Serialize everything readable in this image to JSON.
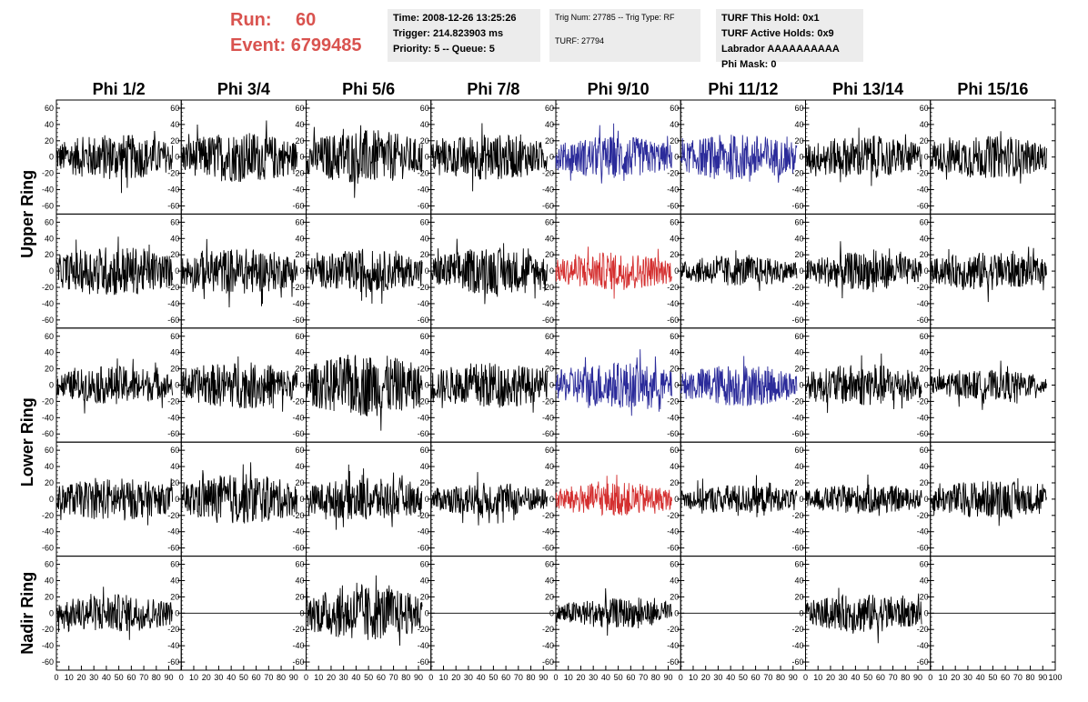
{
  "header": {
    "run_label": "Run:",
    "run_value": "60",
    "event_label": "Event:",
    "event_value": "6799485",
    "time": "Time: 2008-12-26 13:25:26",
    "trigger": "Trigger: 214.823903 ms",
    "priority": "Priority: 5 -- Queue: 5",
    "trig_num": "Trig Num: 27785 -- Trig Type: RF",
    "turf": "TURF: 27794",
    "turf_hold": "TURF This Hold: 0x1",
    "turf_active": "TURF Active Holds: 0x9",
    "labrador": "Labrador AAAAAAAAAA",
    "phi_mask": "Phi Mask: 0"
  },
  "colors": {
    "accent": "#d9534f",
    "black": "#000000",
    "blue": "#2b2b9a",
    "red": "#d43030"
  },
  "chart_data": {
    "type": "line",
    "columns": [
      "Phi 1/2",
      "Phi 3/4",
      "Phi 5/6",
      "Phi 7/8",
      "Phi 9/10",
      "Phi 11/12",
      "Phi 13/14",
      "Phi 15/16"
    ],
    "ring_labels": [
      "Upper Ring",
      "Lower Ring",
      "Nadir Ring"
    ],
    "y_ticks": [
      "60",
      "40",
      "20",
      "0",
      "-20",
      "-40",
      "-60"
    ],
    "x_ticks": [
      "0",
      "10",
      "20",
      "30",
      "40",
      "50",
      "60",
      "70",
      "80",
      "90",
      "100"
    ],
    "ylim": [
      -70,
      70
    ],
    "xlim": [
      0,
      100
    ],
    "rows": [
      {
        "amps": [
          22,
          24,
          26,
          22,
          20,
          22,
          20,
          20
        ],
        "colors": [
          "black",
          "black",
          "black",
          "black",
          "blue",
          "blue",
          "black",
          "black"
        ]
      },
      {
        "amps": [
          24,
          22,
          20,
          22,
          18,
          14,
          18,
          18
        ],
        "colors": [
          "black",
          "black",
          "black",
          "black",
          "red",
          "black",
          "black",
          "black"
        ]
      },
      {
        "amps": [
          18,
          22,
          30,
          22,
          22,
          20,
          20,
          14
        ],
        "colors": [
          "black",
          "black",
          "black",
          "black",
          "blue",
          "blue",
          "black",
          "black"
        ]
      },
      {
        "amps": [
          20,
          24,
          20,
          16,
          16,
          14,
          14,
          18
        ],
        "colors": [
          "black",
          "black",
          "black",
          "black",
          "red",
          "black",
          "black",
          "black"
        ]
      },
      {
        "amps": [
          18,
          0,
          26,
          0,
          14,
          0,
          18,
          0
        ],
        "colors": [
          "black",
          "black",
          "black",
          "black",
          "black",
          "black",
          "black",
          "black"
        ]
      }
    ]
  }
}
